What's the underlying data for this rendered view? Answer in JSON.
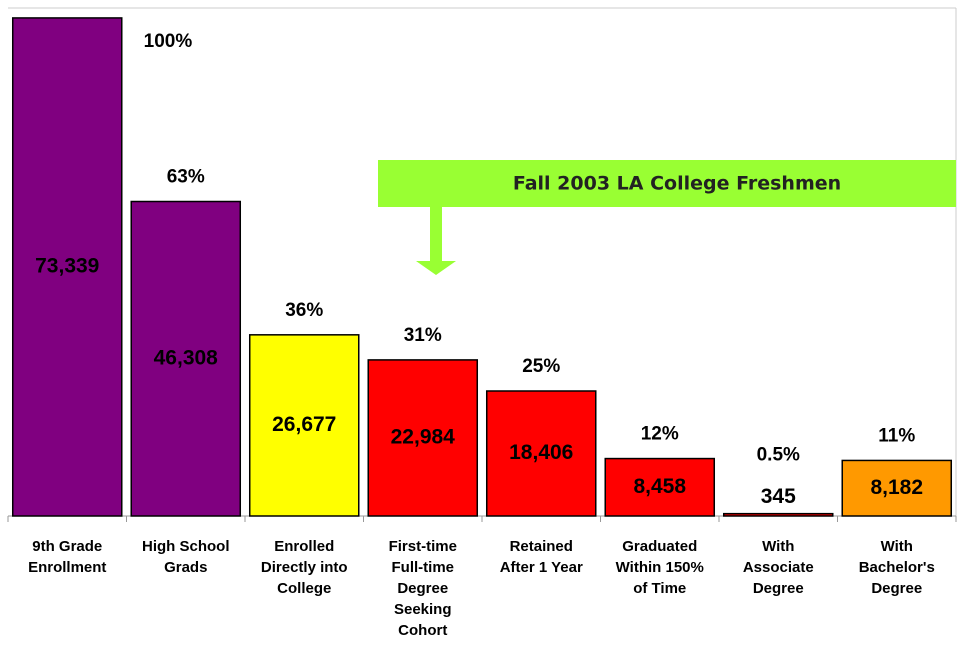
{
  "chart_data": {
    "type": "bar",
    "categories": [
      "9th Grade\nEnrollment",
      "High School\nGrads",
      "Enrolled\nDirectly into\nCollege",
      "First-time\nFull-time\nDegree\nSeeking\nCohort",
      "Retained\nAfter 1 Year",
      "Graduated\nWithin 150%\nof Time",
      "With\nAssociate\nDegree",
      "With\nBachelor's\nDegree"
    ],
    "values": [
      73339,
      46308,
      26677,
      22984,
      18406,
      8458,
      345,
      8182
    ],
    "value_labels": [
      "73,339",
      "46,308",
      "26,677",
      "22,984",
      "18,406",
      "8,458",
      "345",
      "8,182"
    ],
    "percent_values": [
      100,
      63,
      36,
      31,
      25,
      12,
      0.5,
      11
    ],
    "percent_labels": [
      "100%",
      "63%",
      "36%",
      "31%",
      "25%",
      "12%",
      "0.5%",
      "11%"
    ],
    "colors": [
      "#800080",
      "#800080",
      "#ffff00",
      "#ff0000",
      "#ff0000",
      "#ff0000",
      "#ff0000",
      "#ff9900"
    ],
    "ylim": [
      0,
      74800
    ],
    "annotation": "Fall 2003 LA College Freshmen"
  }
}
